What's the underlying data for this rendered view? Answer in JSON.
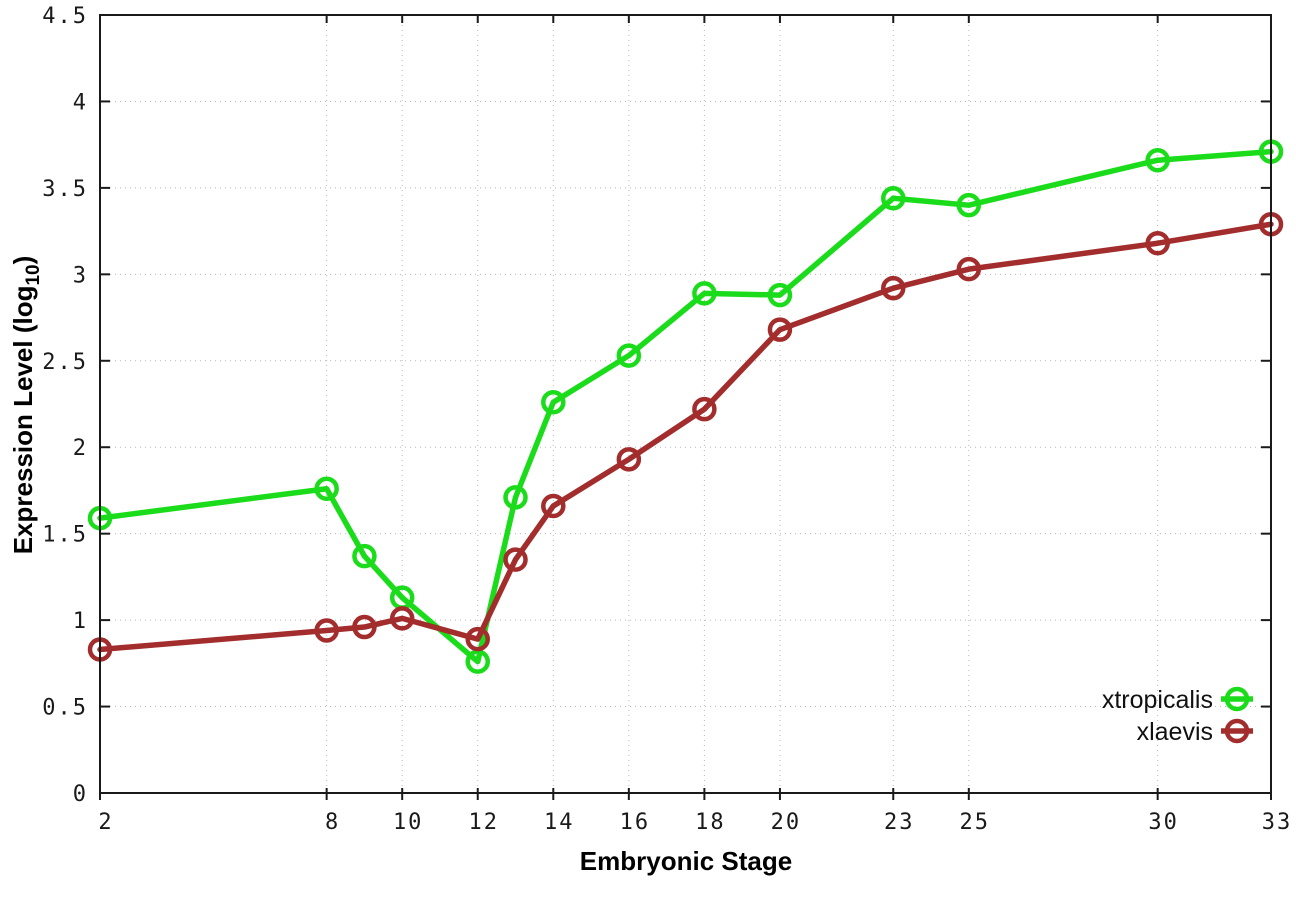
{
  "chart_data": {
    "type": "line",
    "title": "",
    "xlabel": "Embryonic Stage",
    "ylabel": "Expression Level (log10)",
    "ylabel_parts": {
      "main": "Expression Level (log",
      "sub": "10",
      "end": ")"
    },
    "x": [
      2,
      8,
      9,
      10,
      12,
      13,
      14,
      16,
      18,
      20,
      23,
      25,
      30,
      33
    ],
    "series": [
      {
        "name": "xtropicalis",
        "color": "#1BDC1B",
        "values": [
          1.59,
          1.76,
          1.37,
          1.13,
          0.76,
          1.71,
          2.26,
          2.53,
          2.89,
          2.88,
          3.44,
          3.4,
          3.66,
          3.71
        ]
      },
      {
        "name": "xlaevis",
        "color": "#A32D2D",
        "values": [
          0.83,
          0.94,
          0.96,
          1.01,
          0.89,
          1.35,
          1.66,
          1.93,
          2.22,
          2.68,
          2.92,
          3.03,
          3.18,
          3.29
        ]
      }
    ],
    "xlim": [
      2,
      33
    ],
    "ylim": [
      0,
      4.5
    ],
    "x_ticks": {
      "values": [
        2,
        8,
        10,
        12,
        14,
        16,
        18,
        20,
        23,
        25,
        30,
        33
      ],
      "labels": [
        "2",
        "8",
        "10",
        "12",
        "14",
        "16",
        "18",
        "20",
        "23",
        "25",
        "30",
        "33"
      ]
    },
    "y_ticks": {
      "values": [
        0,
        0.5,
        1,
        1.5,
        2,
        2.5,
        3,
        3.5,
        4,
        4.5
      ],
      "labels": [
        "0",
        "0.5",
        "1",
        "1.5",
        "2",
        "2.5",
        "3",
        "3.5",
        "4",
        "4.5"
      ]
    },
    "grid": true,
    "grid_color": "#b8b8b8",
    "border_color": "#1a1a1a",
    "legend_position": "bottom-right-inside",
    "marker": "open-circle"
  }
}
